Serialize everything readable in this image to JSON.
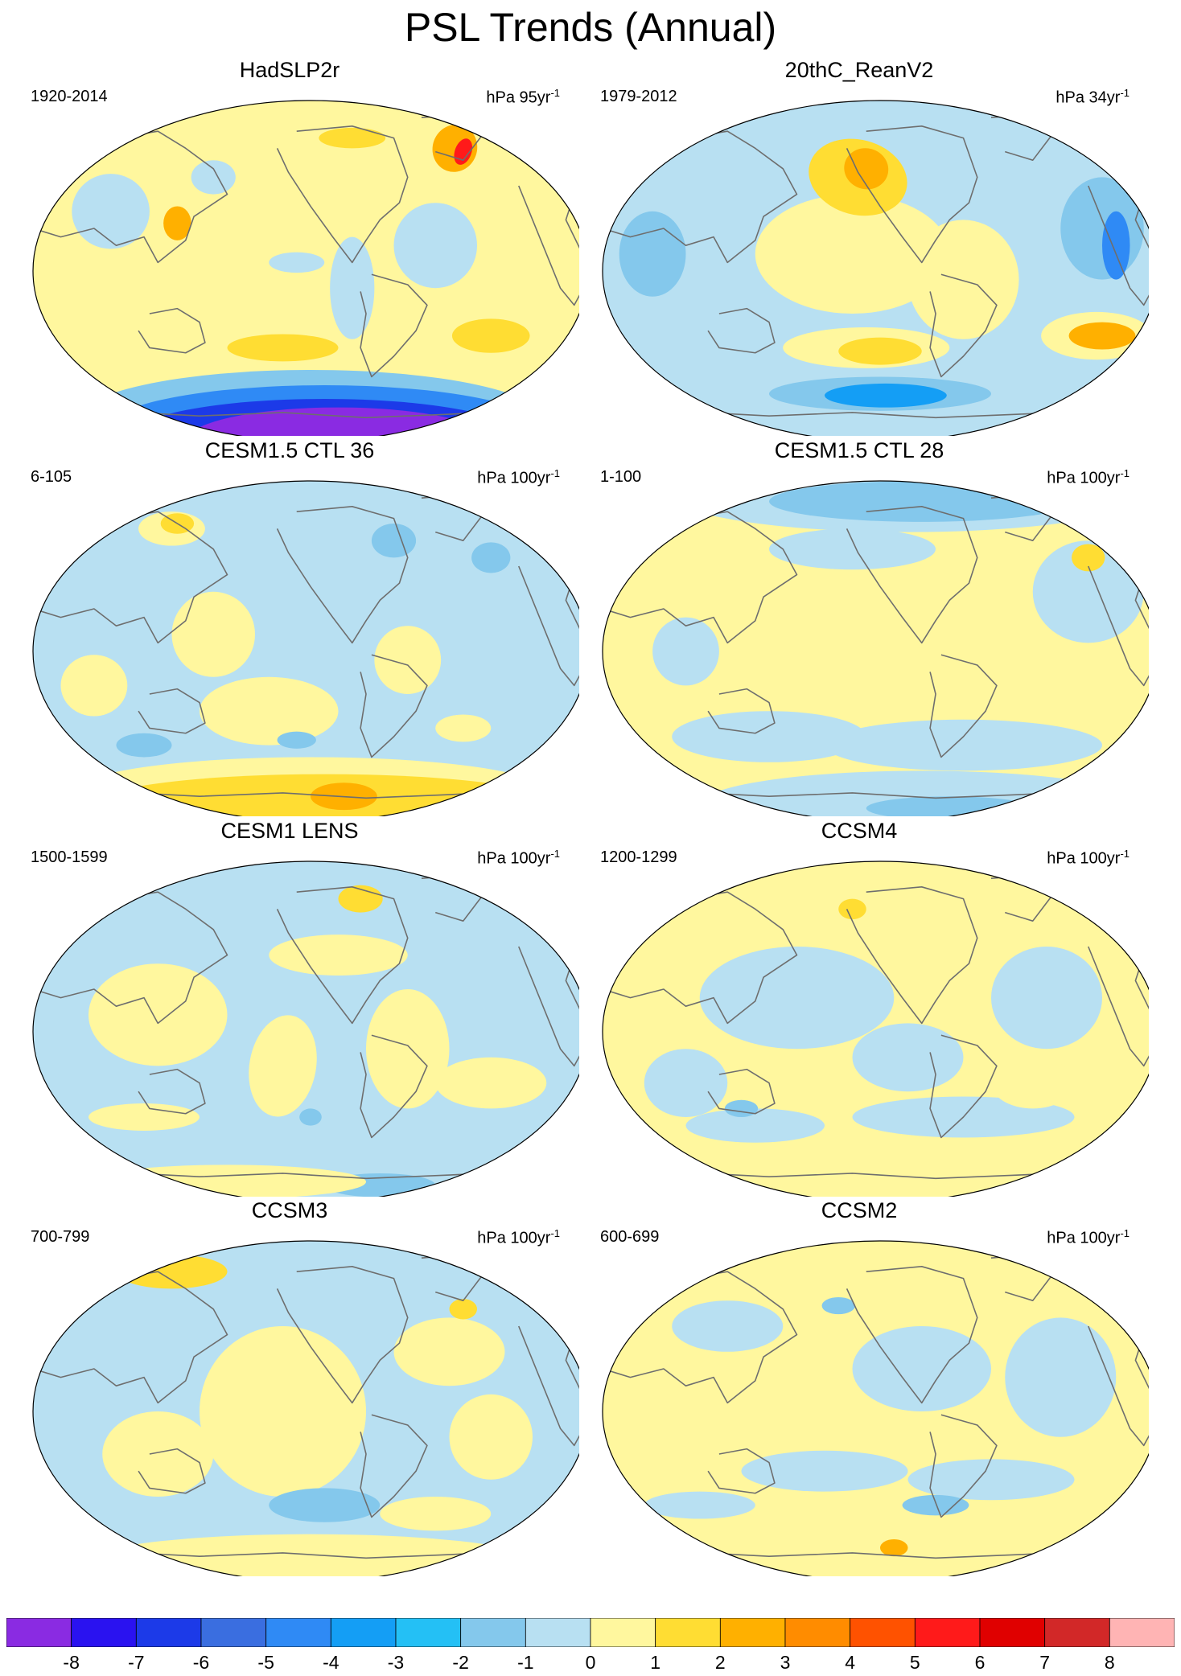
{
  "title": "PSL Trends (Annual)",
  "units_prefix": "hPa",
  "panels": [
    {
      "name": "HadSLP2r",
      "period": "1920-2014",
      "units_value": "95yr",
      "units_exp": "-1",
      "pattern": "hadslp"
    },
    {
      "name": "20thC_ReanV2",
      "period": "1979-2012",
      "units_value": "34yr",
      "units_exp": "-1",
      "pattern": "rean"
    },
    {
      "name": "CESM1.5 CTL 36",
      "period": "6-105",
      "units_value": "100yr",
      "units_exp": "-1",
      "pattern": "cesm36"
    },
    {
      "name": "CESM1.5 CTL 28",
      "period": "1-100",
      "units_value": "100yr",
      "units_exp": "-1",
      "pattern": "cesm28"
    },
    {
      "name": "CESM1 LENS",
      "period": "1500-1599",
      "units_value": "100yr",
      "units_exp": "-1",
      "pattern": "lens"
    },
    {
      "name": "CCSM4",
      "period": "1200-1299",
      "units_value": "100yr",
      "units_exp": "-1",
      "pattern": "ccsm4"
    },
    {
      "name": "CCSM3",
      "period": "700-799",
      "units_value": "100yr",
      "units_exp": "-1",
      "pattern": "ccsm3"
    },
    {
      "name": "CCSM2",
      "period": "600-699",
      "units_value": "100yr",
      "units_exp": "-1",
      "pattern": "ccsm2"
    }
  ],
  "colorbar": {
    "labels": [
      "-8",
      "-7",
      "-6",
      "-5",
      "-4",
      "-3",
      "-2",
      "-1",
      "0",
      "1",
      "2",
      "3",
      "4",
      "5",
      "6",
      "7",
      "8"
    ],
    "colors": [
      "#8a2be2",
      "#2a12f0",
      "#1c3ae8",
      "#3a6ee0",
      "#2f8af5",
      "#149ef5",
      "#24c0f5",
      "#84c8ec",
      "#b8e0f2",
      "#fff79e",
      "#ffdd33",
      "#ffb000",
      "#ff8c00",
      "#ff5200",
      "#ff1a1a",
      "#e00000",
      "#d22828",
      "#ffb4b4"
    ]
  },
  "legend_colors": {
    "ocean_neutral_positive": "#fff79e",
    "ocean_neutral_negative": "#b8e0f2",
    "coastline": "#6e6e6e"
  }
}
